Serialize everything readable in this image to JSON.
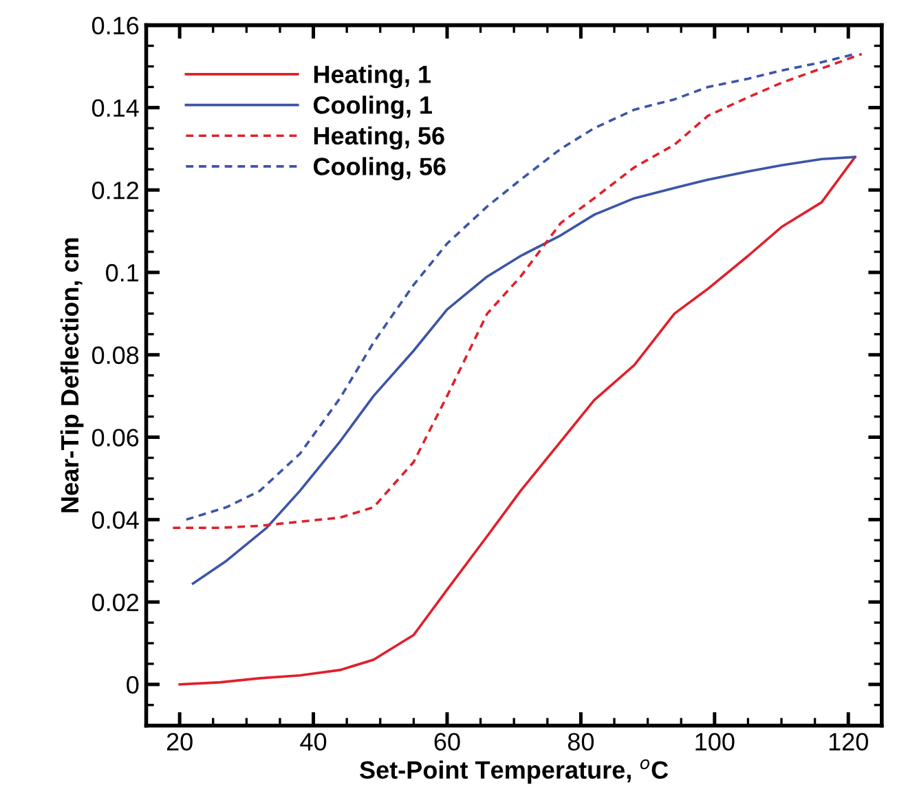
{
  "chart_data": {
    "type": "line",
    "xlabel": "Set-Point Temperature, $^{o}$C",
    "ylabel": "Near-Tip Deflection, cm",
    "xlim": [
      15,
      125
    ],
    "ylim": [
      -0.01,
      0.16
    ],
    "xticks": [
      20,
      40,
      60,
      80,
      100,
      120
    ],
    "yticks": [
      0,
      0.02,
      0.04,
      0.06,
      0.08,
      0.1,
      0.12,
      0.14,
      0.16
    ],
    "grid": false,
    "legend": "top left",
    "marker": "none",
    "series": [
      {
        "name": "Heating, 1",
        "color": "#e0202a",
        "line_style": "solid",
        "x": [
          20,
          26,
          32,
          38,
          44,
          49,
          55,
          60,
          66,
          71,
          77,
          82,
          88,
          94,
          99,
          105,
          110,
          116,
          121
        ],
        "values": [
          0,
          0.0005,
          0.0015,
          0.0022,
          0.0035,
          0.006,
          0.012,
          0.023,
          0.036,
          0.047,
          0.059,
          0.069,
          0.0775,
          0.09,
          0.096,
          0.104,
          0.111,
          0.117,
          0.128
        ]
      },
      {
        "name": "Cooling, 1",
        "color": "#3c55a8",
        "line_style": "solid",
        "x": [
          22,
          27,
          33,
          38,
          44,
          49,
          55,
          60,
          66,
          71,
          77,
          82,
          88,
          94,
          99,
          105,
          110,
          116,
          121
        ],
        "values": [
          0.0245,
          0.03,
          0.038,
          0.047,
          0.059,
          0.07,
          0.081,
          0.091,
          0.099,
          0.104,
          0.109,
          0.114,
          0.118,
          0.1205,
          0.1225,
          0.1245,
          0.126,
          0.1275,
          0.128
        ]
      },
      {
        "name": "Heating, 56",
        "color": "#e0202a",
        "line_style": "dashed",
        "x": [
          19,
          26,
          32,
          38,
          44,
          49,
          55,
          60,
          66,
          71,
          77,
          82,
          88,
          94,
          99,
          105,
          110,
          116,
          122
        ],
        "values": [
          0.038,
          0.038,
          0.0385,
          0.0395,
          0.0405,
          0.043,
          0.054,
          0.07,
          0.09,
          0.099,
          0.112,
          0.118,
          0.1255,
          0.131,
          0.138,
          0.1425,
          0.146,
          0.1495,
          0.153
        ]
      },
      {
        "name": "Cooling, 56",
        "color": "#3c55a8",
        "line_style": "dashed",
        "x": [
          21,
          27,
          32,
          38,
          44,
          49,
          55,
          60,
          66,
          71,
          77,
          82,
          88,
          94,
          99,
          105,
          110,
          116,
          121
        ],
        "values": [
          0.04,
          0.043,
          0.047,
          0.056,
          0.0695,
          0.083,
          0.097,
          0.107,
          0.116,
          0.1225,
          0.13,
          0.135,
          0.1395,
          0.142,
          0.145,
          0.147,
          0.149,
          0.151,
          0.153
        ]
      }
    ]
  }
}
